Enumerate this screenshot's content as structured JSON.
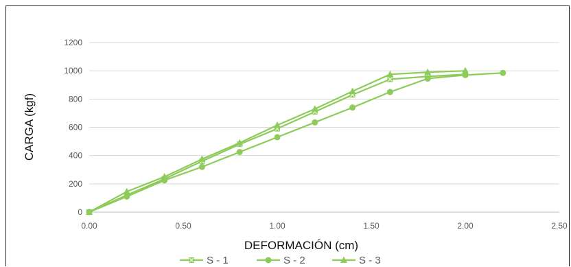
{
  "chart_data": {
    "type": "line",
    "title": "",
    "xlabel": "DEFORMACIÓN (cm)",
    "ylabel": "CARGA (kgf)",
    "xlim": [
      0,
      2.5
    ],
    "ylim": [
      0,
      1200
    ],
    "xticks": [
      "0.00",
      "0.50",
      "1.00",
      "1.50",
      "2.00",
      "2.50"
    ],
    "yticks": [
      "0",
      "200",
      "400",
      "600",
      "800",
      "1000",
      "1200"
    ],
    "grid": "horizontal",
    "legend_position": "bottom",
    "line_color": "#8dcb5a",
    "series": [
      {
        "name": "S - 1",
        "marker": "x",
        "x": [
          0,
          0.2,
          0.4,
          0.6,
          0.8,
          1.0,
          1.2,
          1.4,
          1.6,
          1.8,
          2.0
        ],
        "y": [
          0,
          120,
          235,
          360,
          480,
          590,
          710,
          830,
          940,
          960,
          975
        ]
      },
      {
        "name": "S - 2",
        "marker": "circle",
        "x": [
          0,
          0.2,
          0.4,
          0.6,
          0.8,
          1.0,
          1.2,
          1.4,
          1.6,
          1.8,
          2.0,
          2.2
        ],
        "y": [
          0,
          110,
          225,
          320,
          425,
          530,
          635,
          740,
          850,
          945,
          970,
          985
        ]
      },
      {
        "name": "S - 3",
        "marker": "triangle",
        "x": [
          0,
          0.2,
          0.4,
          0.6,
          0.8,
          1.0,
          1.2,
          1.4,
          1.6,
          1.8,
          2.0
        ],
        "y": [
          0,
          145,
          250,
          375,
          490,
          615,
          730,
          855,
          975,
          990,
          1000
        ]
      }
    ]
  }
}
